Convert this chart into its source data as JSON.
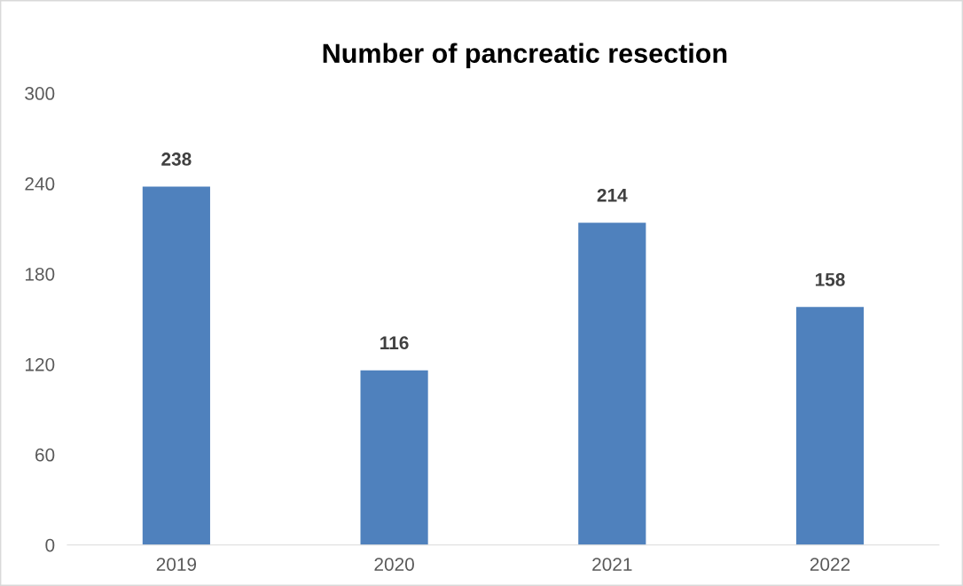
{
  "chart_data": {
    "type": "bar",
    "title": "Number of pancreatic resection",
    "categories": [
      "2019",
      "2020",
      "2021",
      "2022"
    ],
    "values": [
      238,
      116,
      214,
      158
    ],
    "color": "#4f81bd",
    "ylim": [
      0,
      300
    ],
    "yticks": [
      0,
      60,
      120,
      180,
      240,
      300
    ],
    "data_labels": true,
    "grid": false,
    "legend": false
  }
}
